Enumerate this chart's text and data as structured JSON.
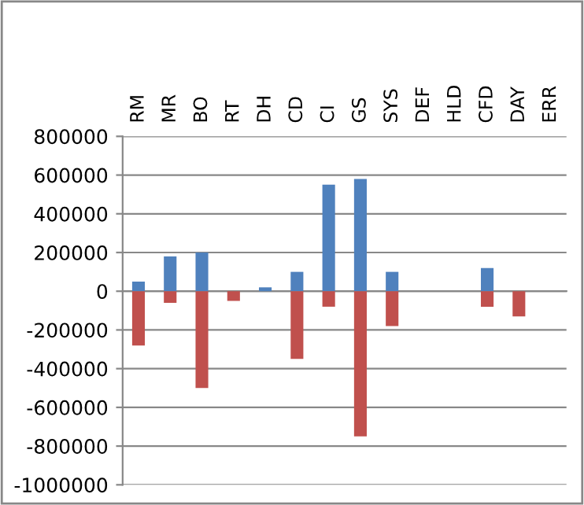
{
  "chart_data": {
    "type": "bar",
    "stacked": true,
    "categories": [
      "RM",
      "MR",
      "BO",
      "RT",
      "DH",
      "CD",
      "CI",
      "GS",
      "SYS",
      "DEF",
      "HLD",
      "CFD",
      "DAY",
      "ERR"
    ],
    "series": [
      {
        "color": "#4f81bd",
        "values": [
          50000,
          180000,
          200000,
          null,
          20000,
          100000,
          550000,
          580000,
          100000,
          null,
          null,
          120000,
          null,
          null
        ]
      },
      {
        "color": "#c0504d",
        "values": [
          -280000,
          -60000,
          -500000,
          -50000,
          null,
          -350000,
          -80000,
          -750000,
          -180000,
          null,
          null,
          -80000,
          -130000,
          null
        ]
      }
    ],
    "ylim": [
      -1000000,
      800000
    ],
    "yticks": [
      -1000000,
      -800000,
      -600000,
      -400000,
      -200000,
      0,
      200000,
      400000,
      600000,
      800000
    ],
    "grid": "y",
    "legend": false
  }
}
